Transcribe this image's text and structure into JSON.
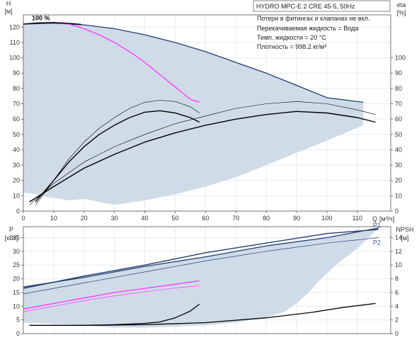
{
  "info": {
    "title": "HYDRO MPC-E 2 CRE 45-5, 50Hz",
    "lines": [
      "Потери в фитингах и клапанах не вкл.",
      "Перекачиваемая жидкость = Вода",
      "Темп. жидкости = 20 °C",
      "Плотность = 998.2 кг/м³"
    ]
  },
  "colors": {
    "envelope": "#cfdce8",
    "border": "#1f3f6f",
    "grid": "#e6ecf2",
    "magenta": "#ff33ff",
    "black": "#000000",
    "dark_blue": "#1f3f6f"
  },
  "chart_data": [
    {
      "type": "line",
      "name": "head-efficiency",
      "axes": {
        "x": {
          "label": "Q",
          "unit": "[м³/ч]",
          "ticks": [
            0,
            10,
            20,
            30,
            40,
            50,
            60,
            70,
            80,
            90,
            100,
            110
          ],
          "range": [
            0,
            121
          ]
        },
        "y_left": {
          "label": "H",
          "unit": "[м]",
          "ticks": [
            0,
            10,
            20,
            30,
            40,
            50,
            60,
            70,
            80,
            90,
            100,
            110,
            120
          ],
          "range": [
            0,
            128
          ]
        },
        "y_right": {
          "label": "eta",
          "unit": "[%]",
          "ticks": [
            0,
            10,
            20,
            30,
            40,
            50,
            60,
            70,
            80,
            90,
            100
          ],
          "range": [
            0,
            128
          ]
        }
      },
      "envelope": {
        "top": [
          [
            0,
            122
          ],
          [
            10,
            122.6
          ],
          [
            20,
            121.5
          ],
          [
            30,
            119
          ],
          [
            40,
            115
          ],
          [
            50,
            110
          ],
          [
            60,
            104
          ],
          [
            70,
            97
          ],
          [
            80,
            90
          ],
          [
            90,
            82
          ],
          [
            100,
            74
          ],
          [
            112,
            71
          ]
        ],
        "bottom": [
          [
            112,
            71
          ],
          [
            112,
            56
          ],
          [
            100,
            46
          ],
          [
            90,
            38
          ],
          [
            80,
            30
          ],
          [
            70,
            22
          ],
          [
            60,
            16
          ],
          [
            50,
            11
          ],
          [
            40,
            7
          ],
          [
            30,
            4
          ],
          [
            25,
            6
          ],
          [
            20,
            8
          ],
          [
            15,
            7
          ],
          [
            12,
            8
          ],
          [
            8,
            9
          ],
          [
            4,
            11
          ],
          [
            0,
            12
          ]
        ]
      },
      "series": [
        {
          "name": "",
          "color": "magenta",
          "width": 1.3,
          "points": [
            [
              0,
              122
            ],
            [
              5,
              122.8
            ],
            [
              10,
              123
            ],
            [
              15,
              122
            ],
            [
              20,
              119
            ],
            [
              25,
              115
            ],
            [
              30,
              110
            ],
            [
              35,
              104
            ],
            [
              40,
              97
            ],
            [
              45,
              89
            ],
            [
              50,
              81
            ],
            [
              55,
              73
            ],
            [
              58,
              71
            ]
          ]
        },
        {
          "name": "100 %",
          "color": "black",
          "width": 1.4,
          "points": [
            [
              0,
              122
            ],
            [
              5,
              122.8
            ],
            [
              10,
              123
            ],
            [
              15,
              122.5
            ],
            [
              19,
              121.8
            ]
          ]
        },
        {
          "name": "",
          "color": "black",
          "width": 0.6,
          "points": [
            [
              4,
              4
            ],
            [
              10,
              20
            ],
            [
              15,
              34
            ],
            [
              20,
              45
            ],
            [
              25,
              54
            ],
            [
              30,
              61
            ],
            [
              35,
              67
            ],
            [
              40,
              71
            ],
            [
              45,
              72.3
            ],
            [
              50,
              71.5
            ],
            [
              55,
              68
            ],
            [
              58,
              64
            ]
          ]
        },
        {
          "name": "",
          "color": "black",
          "width": 1.4,
          "points": [
            [
              4,
              6
            ],
            [
              10,
              20
            ],
            [
              15,
              32
            ],
            [
              20,
              42
            ],
            [
              25,
              50
            ],
            [
              30,
              56
            ],
            [
              35,
              61
            ],
            [
              40,
              64.5
            ],
            [
              45,
              65.5
            ],
            [
              50,
              64
            ],
            [
              55,
              61
            ],
            [
              58,
              58
            ]
          ]
        },
        {
          "name": "",
          "color": "black",
          "width": 0.6,
          "points": [
            [
              2,
              4
            ],
            [
              10,
              18
            ],
            [
              20,
              32
            ],
            [
              30,
              42
            ],
            [
              40,
              50
            ],
            [
              50,
              57
            ],
            [
              60,
              62
            ],
            [
              70,
              67
            ],
            [
              80,
              70
            ],
            [
              90,
              71.5
            ],
            [
              100,
              70
            ],
            [
              110,
              66
            ],
            [
              116,
              63
            ]
          ]
        },
        {
          "name": "",
          "color": "black",
          "width": 1.4,
          "points": [
            [
              2,
              6
            ],
            [
              10,
              16
            ],
            [
              20,
              28
            ],
            [
              30,
              37
            ],
            [
              40,
              45
            ],
            [
              50,
              51
            ],
            [
              60,
              56
            ],
            [
              70,
              60
            ],
            [
              80,
              63
            ],
            [
              90,
              65
            ],
            [
              100,
              64
            ],
            [
              110,
              61
            ],
            [
              116,
              58
            ]
          ]
        }
      ]
    },
    {
      "type": "line",
      "name": "power-npsh",
      "axes": {
        "x": {
          "ticks": [
            0,
            10,
            20,
            30,
            40,
            50,
            60,
            70,
            80,
            90,
            100,
            110
          ],
          "range": [
            0,
            121
          ]
        },
        "y_left": {
          "label": "P",
          "unit": "[кВт]",
          "ticks": [
            0,
            5,
            10,
            15,
            20,
            25,
            30,
            35
          ],
          "range": [
            0,
            39
          ]
        },
        "y_right": {
          "label": "NPSH",
          "unit": "[м]",
          "ticks": [
            0,
            2,
            4,
            6,
            8,
            10,
            12,
            14
          ],
          "range": [
            0,
            15.6
          ]
        }
      },
      "envelope": {
        "top": [
          [
            0,
            17
          ],
          [
            20,
            20.5
          ],
          [
            40,
            24.5
          ],
          [
            60,
            28
          ],
          [
            80,
            32
          ],
          [
            100,
            35
          ],
          [
            117,
            38.5
          ]
        ],
        "bottom": [
          [
            117,
            38.5
          ],
          [
            110,
            31
          ],
          [
            104,
            26
          ],
          [
            98,
            20
          ],
          [
            94,
            15
          ],
          [
            90,
            11
          ],
          [
            86,
            8
          ],
          [
            80,
            6
          ],
          [
            70,
            4
          ],
          [
            60,
            3
          ],
          [
            50,
            2.5
          ],
          [
            40,
            2.2
          ],
          [
            30,
            2.2
          ],
          [
            20,
            3
          ],
          [
            10,
            3.5
          ],
          [
            0,
            4
          ]
        ]
      },
      "series": [
        {
          "name": "P1",
          "color": "dark_blue",
          "width": 1.4,
          "points": [
            [
              0,
              16.5
            ],
            [
              20,
              21
            ],
            [
              40,
              25
            ],
            [
              60,
              29.5
            ],
            [
              80,
              33
            ],
            [
              100,
              36.5
            ],
            [
              117,
              38
            ]
          ]
        },
        {
          "name": "P2",
          "color": "dark_blue",
          "width": 0.7,
          "points": [
            [
              0,
              14.5
            ],
            [
              20,
              18.5
            ],
            [
              40,
              22.5
            ],
            [
              60,
              26.5
            ],
            [
              80,
              30
            ],
            [
              100,
              33
            ],
            [
              117,
              35
            ]
          ]
        },
        {
          "name": "",
          "color": "magenta",
          "width": 1.3,
          "points": [
            [
              0,
              9
            ],
            [
              10,
              11
            ],
            [
              20,
              13
            ],
            [
              30,
              15
            ],
            [
              40,
              16.5
            ],
            [
              50,
              18
            ],
            [
              58,
              19.3
            ]
          ]
        },
        {
          "name": "",
          "color": "magenta",
          "width": 0.7,
          "points": [
            [
              0,
              8
            ],
            [
              10,
              10
            ],
            [
              20,
              12
            ],
            [
              30,
              13.8
            ],
            [
              40,
              15.3
            ],
            [
              50,
              16.6
            ],
            [
              58,
              17.5
            ]
          ]
        },
        {
          "name": "",
          "color": "black",
          "width": 1.3,
          "axis": "right",
          "points": [
            [
              2,
              1.2
            ],
            [
              10,
              1.2
            ],
            [
              20,
              1.2
            ],
            [
              30,
              1.3
            ],
            [
              40,
              1.5
            ],
            [
              45,
              1.7
            ],
            [
              50,
              2.3
            ],
            [
              55,
              3.3
            ],
            [
              58,
              4.3
            ]
          ]
        },
        {
          "name": "",
          "color": "black",
          "width": 1.3,
          "axis": "right",
          "points": [
            [
              2,
              1.2
            ],
            [
              20,
              1.2
            ],
            [
              40,
              1.3
            ],
            [
              60,
              1.6
            ],
            [
              80,
              2.3
            ],
            [
              95,
              3.1
            ],
            [
              105,
              3.8
            ],
            [
              116,
              4.4
            ]
          ]
        }
      ]
    }
  ]
}
